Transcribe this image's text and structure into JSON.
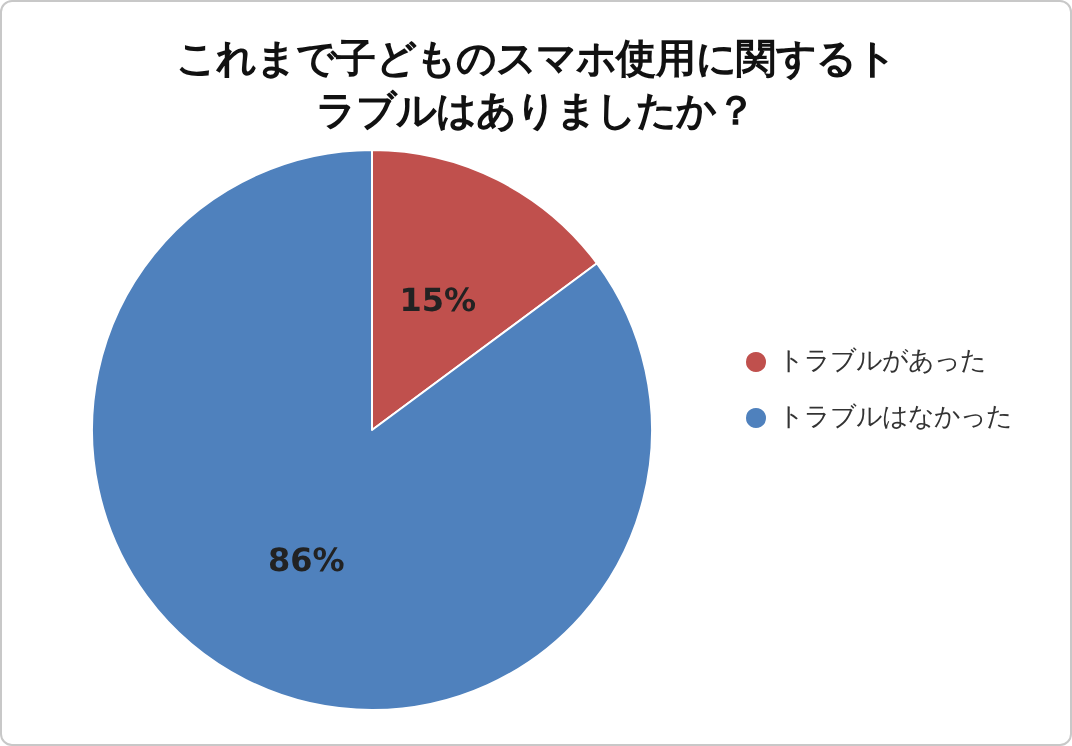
{
  "chart_data": {
    "type": "pie",
    "title": "これまで子どものスマホ使用に関するトラブルはありましたか？",
    "categories": [
      "トラブルがあった",
      "トラブルはなかった"
    ],
    "values": [
      15,
      86
    ],
    "colors": [
      "#c0504d",
      "#4f81bd"
    ],
    "value_labels": [
      "15%",
      "86%"
    ],
    "legend": "right"
  }
}
